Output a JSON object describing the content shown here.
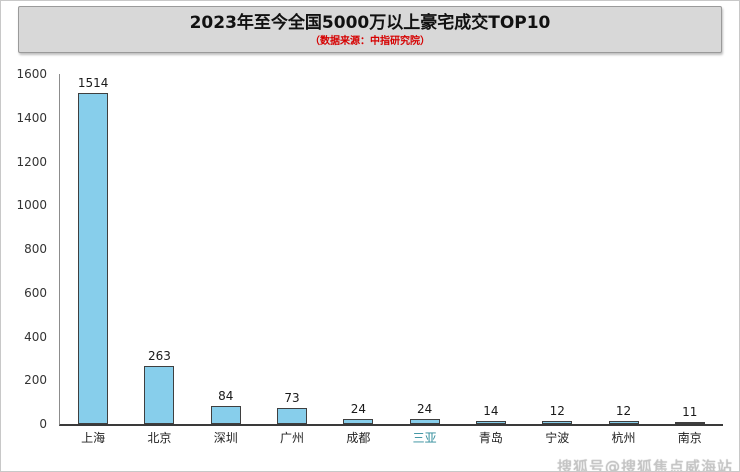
{
  "header": {
    "title": "2023年至今全国5000万以上豪宅成交TOP10",
    "subtitle": "（数据来源：中指研究院）"
  },
  "watermark": "搜狐号@搜狐焦点威海站",
  "chart_data": {
    "type": "bar",
    "title": "2023年至今全国5000万以上豪宅成交TOP10",
    "subtitle": "（数据来源：中指研究院）",
    "categories": [
      "上海",
      "北京",
      "深圳",
      "广州",
      "成都",
      "三亚",
      "青岛",
      "宁波",
      "杭州",
      "南京"
    ],
    "values": [
      1514,
      263,
      84,
      73,
      24,
      24,
      14,
      12,
      12,
      11
    ],
    "xlabel": "",
    "ylabel": "",
    "ylim": [
      0,
      1600
    ],
    "ytick_step": 200,
    "grid": false,
    "legend": false,
    "bar_color": "#87CEEB",
    "bar_border_color": "#3f3f3f",
    "highlighted_category": "三亚",
    "highlight_color": "#2E8B9A"
  }
}
